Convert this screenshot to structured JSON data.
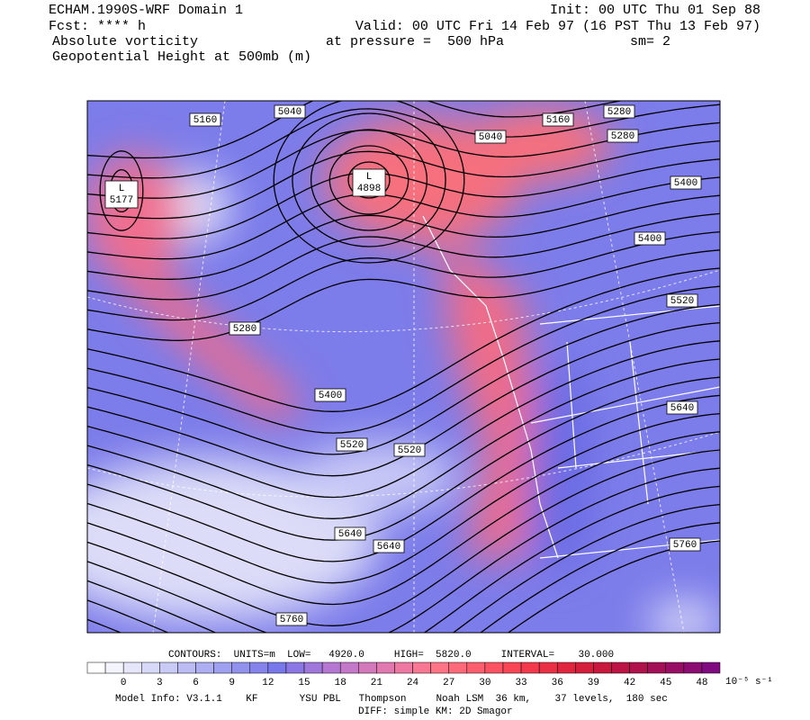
{
  "header": {
    "model": "ECHAM.1990S-WRF Domain 1",
    "forecast": "Fcst: **** h",
    "field1": "Absolute vorticity",
    "field2": "Geopotential Height at 500mb (m)",
    "init": "Init: 00 UTC Thu 01 Sep 88",
    "valid": "Valid: 00 UTC Fri 14 Feb 97 (16 PST Thu 13 Feb 97)",
    "pressure": "at pressure =  500 hPa",
    "smoothing": "sm= 2"
  },
  "contour_labels": [
    5160,
    5040,
    5160,
    5280,
    5280,
    5040,
    5400,
    5400,
    5520,
    5280,
    5400,
    5520,
    5520,
    5640,
    5640,
    5640,
    5760,
    5760
  ],
  "lows": [
    {
      "label": "L",
      "value": 4898
    },
    {
      "label": "L",
      "value": 5177
    }
  ],
  "colorbar": {
    "ticks": [
      0,
      3,
      6,
      9,
      12,
      15,
      18,
      21,
      24,
      27,
      30,
      33,
      36,
      39,
      42,
      45,
      48
    ],
    "unit": "10⁻⁵ s⁻¹",
    "colors": [
      "#ffffff",
      "#f4f4fc",
      "#e6e6fa",
      "#d8d8f8",
      "#cacaf6",
      "#bcbcf4",
      "#aeaef2",
      "#a0a0f0",
      "#9292ee",
      "#8484ec",
      "#7878ea",
      "#8c78e4",
      "#a078dc",
      "#b478d2",
      "#c478c8",
      "#d478bc",
      "#e278b0",
      "#ee78a2",
      "#f87894",
      "#fc7486",
      "#fe6a7a",
      "#fe5e6e",
      "#fc5262",
      "#f84656",
      "#f23a4c",
      "#ea3044",
      "#e0263e",
      "#d41e3c",
      "#c8183e",
      "#bc1444",
      "#b0124c",
      "#a41058",
      "#980e64",
      "#8c0c72",
      "#800a80"
    ]
  },
  "footer": {
    "contours": "CONTOURS:  UNITS=m  LOW=   4920.0     HIGH=  5820.0     INTERVAL=    30.000",
    "model_info": "Model Info: V3.1.1    KF       YSU PBL   Thompson     Noah LSM  36 km,    37 levels,  180 sec",
    "diff": "DIFF: simple KM: 2D Smagor"
  }
}
